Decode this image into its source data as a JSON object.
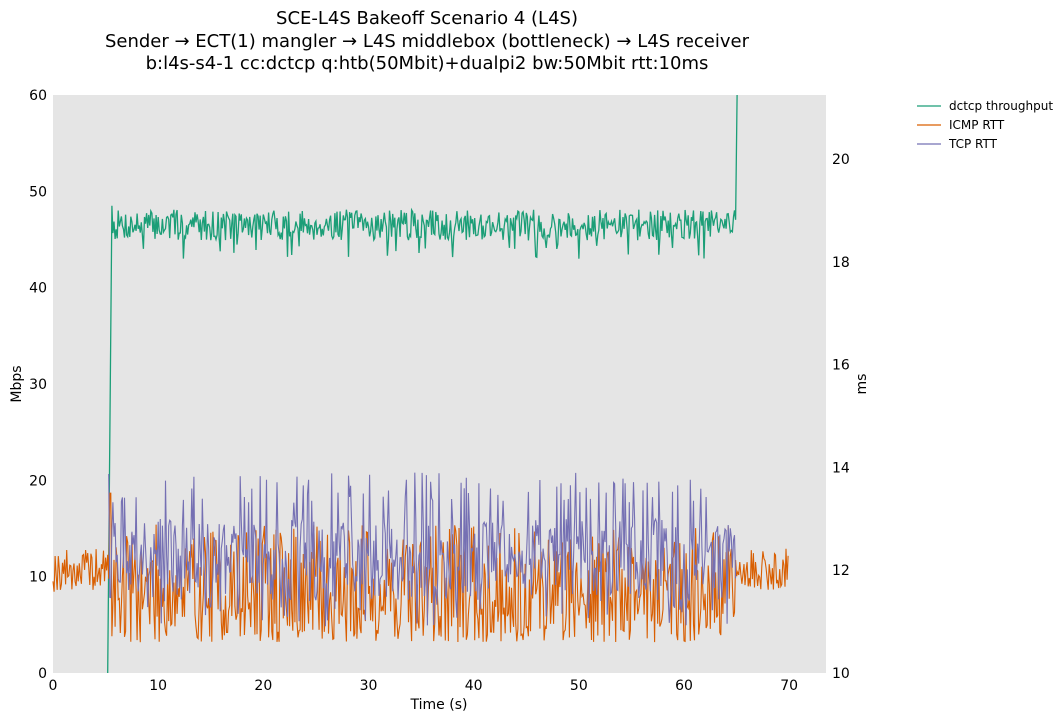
{
  "chart_data": {
    "type": "line",
    "title_lines": [
      "SCE-L4S Bakeoff Scenario 4 (L4S)",
      "Sender → ECT(1) mangler → L4S middlebox (bottleneck) → L4S receiver",
      "b:l4s-s4-1 cc:dctcp q:htb(50Mbit)+dualpi2 bw:50Mbit rtt:10ms"
    ],
    "xlabel": "Time (s)",
    "ylabel_left": "Mbps",
    "ylabel_right": "ms",
    "xlim": [
      0,
      73.5
    ],
    "ylim_left": [
      0,
      60
    ],
    "ylim_right": [
      10,
      21.25
    ],
    "x_ticks": [
      0,
      10,
      20,
      30,
      40,
      50,
      60,
      70
    ],
    "y_ticks_left": [
      0,
      10,
      20,
      30,
      40,
      50,
      60
    ],
    "y_ticks_right": [
      10,
      12,
      14,
      16,
      18,
      20
    ],
    "legend_position": "top-right, outside plot",
    "series": [
      {
        "name": "dctcp throughput",
        "axis": "left",
        "color": "#1b9e77",
        "profile": {
          "start": 5.2,
          "ramp_end": 5.6,
          "end": 65.0,
          "start_value": 0,
          "steady_mean": 46.5,
          "steady_min": 43.0,
          "steady_max": 48.5,
          "final_value": 61
        }
      },
      {
        "name": "ICMP RTT",
        "axis": "right",
        "color": "#d95f02",
        "profile": {
          "start": 0,
          "end": 70.0,
          "idle_mean": 12.0,
          "idle_min": 11.8,
          "idle_max": 12.4,
          "spike_time": 5.4,
          "spike_value": 13.5,
          "load_start": 5.5,
          "load_end": 65.0,
          "load_min": 10.6,
          "load_max": 12.9
        }
      },
      {
        "name": "TCP RTT",
        "axis": "right",
        "color": "#7570b3",
        "profile": {
          "start": 5.3,
          "end": 65.0,
          "load_min": 10.9,
          "load_max": 13.9,
          "load_mean": 12.2
        }
      }
    ]
  }
}
